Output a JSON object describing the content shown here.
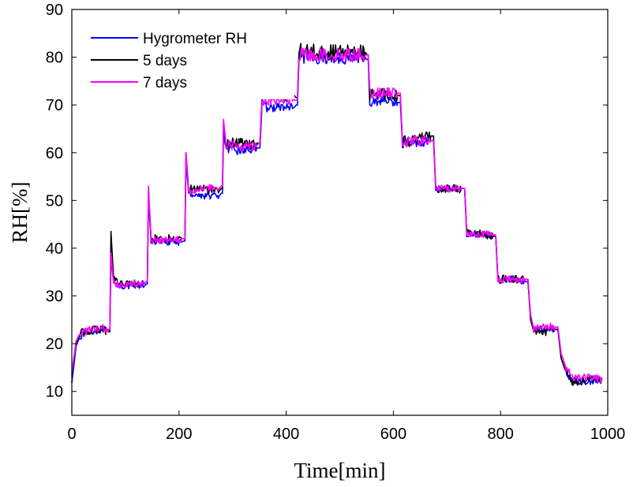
{
  "chart_data": {
    "type": "line",
    "xlabel": "Time[min]",
    "ylabel": "RH[%]",
    "xlim": [
      0,
      1000
    ],
    "ylim": [
      5,
      90
    ],
    "xticks": [
      "0",
      "200",
      "400",
      "600",
      "800",
      "1000"
    ],
    "yticks": [
      "10",
      "20",
      "30",
      "40",
      "50",
      "60",
      "70",
      "80",
      "90"
    ],
    "grid": false,
    "legend_position": "top-left",
    "series": [
      {
        "name": "Hygrometer RH",
        "color": "#0000ff",
        "noise": 0.7,
        "points": [
          [
            0,
            11.8
          ],
          [
            8,
            19.5
          ],
          [
            15,
            21.5
          ],
          [
            30,
            22.5
          ],
          [
            60,
            23.0
          ],
          [
            69,
            22.5
          ],
          [
            71,
            22.5
          ],
          [
            73,
            38.0
          ],
          [
            78,
            32.5
          ],
          [
            100,
            32.0
          ],
          [
            135,
            32.0
          ],
          [
            139,
            32.5
          ],
          [
            141,
            32.5
          ],
          [
            143,
            50.0
          ],
          [
            148,
            41.5
          ],
          [
            175,
            41.3
          ],
          [
            205,
            41.3
          ],
          [
            209,
            41.5
          ],
          [
            211,
            41.5
          ],
          [
            213,
            58.0
          ],
          [
            218,
            51.5
          ],
          [
            240,
            51.0
          ],
          [
            275,
            51.0
          ],
          [
            279,
            51.5
          ],
          [
            281,
            51.5
          ],
          [
            283,
            64.0
          ],
          [
            288,
            60.5
          ],
          [
            315,
            60.5
          ],
          [
            345,
            61.0
          ],
          [
            349,
            61.0
          ],
          [
            351,
            61.0
          ],
          [
            355,
            69.5
          ],
          [
            380,
            69.5
          ],
          [
            415,
            69.5
          ],
          [
            419,
            70.0
          ],
          [
            421,
            70.0
          ],
          [
            424,
            80.0
          ],
          [
            480,
            79.8
          ],
          [
            548,
            79.8
          ],
          [
            551,
            79.5
          ],
          [
            553,
            79.5
          ],
          [
            556,
            70.5
          ],
          [
            580,
            71.0
          ],
          [
            608,
            70.5
          ],
          [
            611,
            70.5
          ],
          [
            613,
            70.5
          ],
          [
            617,
            62.0
          ],
          [
            640,
            62.0
          ],
          [
            670,
            62.5
          ],
          [
            673,
            62.5
          ],
          [
            675,
            62.5
          ],
          [
            679,
            52.5
          ],
          [
            700,
            52.5
          ],
          [
            728,
            52.5
          ],
          [
            731,
            52.5
          ],
          [
            733,
            52.5
          ],
          [
            737,
            43.0
          ],
          [
            760,
            43.0
          ],
          [
            786,
            42.5
          ],
          [
            789,
            42.5
          ],
          [
            791,
            42.5
          ],
          [
            795,
            33.5
          ],
          [
            820,
            33.5
          ],
          [
            846,
            33.0
          ],
          [
            849,
            33.0
          ],
          [
            851,
            33.0
          ],
          [
            856,
            26.0
          ],
          [
            862,
            23.0
          ],
          [
            880,
            23.0
          ],
          [
            902,
            23.0
          ],
          [
            905,
            23.0
          ],
          [
            907,
            23.0
          ],
          [
            913,
            17.0
          ],
          [
            922,
            14.0
          ],
          [
            935,
            12.0
          ],
          [
            960,
            12.0
          ],
          [
            990,
            12.5
          ]
        ]
      },
      {
        "name": "5 days",
        "color": "#000000",
        "noise": 0.9,
        "points": [
          [
            0,
            13.5
          ],
          [
            8,
            20.0
          ],
          [
            15,
            22.0
          ],
          [
            30,
            22.8
          ],
          [
            60,
            23.0
          ],
          [
            69,
            22.5
          ],
          [
            71,
            22.5
          ],
          [
            73,
            43.5
          ],
          [
            78,
            33.5
          ],
          [
            100,
            32.5
          ],
          [
            135,
            32.5
          ],
          [
            139,
            33.0
          ],
          [
            141,
            33.0
          ],
          [
            143,
            52.0
          ],
          [
            148,
            42.0
          ],
          [
            175,
            42.0
          ],
          [
            205,
            42.0
          ],
          [
            209,
            42.0
          ],
          [
            211,
            42.0
          ],
          [
            213,
            60.0
          ],
          [
            218,
            52.5
          ],
          [
            240,
            52.5
          ],
          [
            275,
            52.0
          ],
          [
            279,
            52.5
          ],
          [
            281,
            52.5
          ],
          [
            283,
            66.0
          ],
          [
            288,
            62.0
          ],
          [
            315,
            62.0
          ],
          [
            345,
            62.0
          ],
          [
            349,
            62.0
          ],
          [
            351,
            62.0
          ],
          [
            355,
            72.0
          ],
          [
            380,
            72.0
          ],
          [
            415,
            72.0
          ],
          [
            419,
            71.5
          ],
          [
            421,
            71.5
          ],
          [
            424,
            81.5
          ],
          [
            480,
            81.0
          ],
          [
            548,
            81.0
          ],
          [
            551,
            80.5
          ],
          [
            553,
            80.5
          ],
          [
            556,
            72.0
          ],
          [
            580,
            72.5
          ],
          [
            608,
            72.0
          ],
          [
            611,
            72.0
          ],
          [
            613,
            72.0
          ],
          [
            617,
            62.5
          ],
          [
            640,
            62.5
          ],
          [
            670,
            63.5
          ],
          [
            673,
            63.5
          ],
          [
            675,
            63.5
          ],
          [
            679,
            52.5
          ],
          [
            700,
            52.5
          ],
          [
            728,
            52.5
          ],
          [
            731,
            52.5
          ],
          [
            733,
            52.5
          ],
          [
            737,
            43.0
          ],
          [
            760,
            43.0
          ],
          [
            786,
            42.5
          ],
          [
            789,
            42.5
          ],
          [
            791,
            42.5
          ],
          [
            795,
            33.5
          ],
          [
            820,
            33.5
          ],
          [
            846,
            33.5
          ],
          [
            849,
            33.5
          ],
          [
            851,
            33.5
          ],
          [
            856,
            25.0
          ],
          [
            862,
            22.5
          ],
          [
            880,
            22.5
          ],
          [
            902,
            23.0
          ],
          [
            905,
            23.0
          ],
          [
            907,
            23.0
          ],
          [
            913,
            17.0
          ],
          [
            922,
            14.0
          ],
          [
            935,
            12.0
          ],
          [
            960,
            12.5
          ],
          [
            990,
            12.5
          ]
        ]
      },
      {
        "name": "7 days",
        "color": "#ff00ff",
        "noise": 0.8,
        "points": [
          [
            0,
            14.0
          ],
          [
            8,
            20.5
          ],
          [
            15,
            22.2
          ],
          [
            30,
            22.8
          ],
          [
            60,
            23.2
          ],
          [
            69,
            23.0
          ],
          [
            71,
            23.0
          ],
          [
            73,
            39.0
          ],
          [
            78,
            32.5
          ],
          [
            100,
            32.5
          ],
          [
            135,
            32.5
          ],
          [
            139,
            33.0
          ],
          [
            141,
            33.0
          ],
          [
            143,
            53.0
          ],
          [
            148,
            41.5
          ],
          [
            175,
            41.8
          ],
          [
            205,
            42.0
          ],
          [
            209,
            42.0
          ],
          [
            211,
            42.0
          ],
          [
            213,
            60.0
          ],
          [
            218,
            52.0
          ],
          [
            240,
            52.5
          ],
          [
            275,
            52.5
          ],
          [
            279,
            53.0
          ],
          [
            281,
            53.0
          ],
          [
            283,
            67.0
          ],
          [
            288,
            61.5
          ],
          [
            315,
            61.5
          ],
          [
            345,
            61.5
          ],
          [
            349,
            62.0
          ],
          [
            351,
            62.0
          ],
          [
            355,
            71.0
          ],
          [
            380,
            71.0
          ],
          [
            415,
            71.0
          ],
          [
            419,
            71.0
          ],
          [
            421,
            71.0
          ],
          [
            424,
            80.5
          ],
          [
            480,
            80.5
          ],
          [
            548,
            80.5
          ],
          [
            551,
            80.5
          ],
          [
            553,
            80.5
          ],
          [
            556,
            72.5
          ],
          [
            580,
            72.5
          ],
          [
            608,
            72.5
          ],
          [
            611,
            72.5
          ],
          [
            613,
            72.5
          ],
          [
            617,
            62.0
          ],
          [
            640,
            62.5
          ],
          [
            670,
            62.5
          ],
          [
            673,
            62.5
          ],
          [
            675,
            62.5
          ],
          [
            679,
            52.5
          ],
          [
            700,
            52.5
          ],
          [
            728,
            52.5
          ],
          [
            731,
            52.5
          ],
          [
            733,
            52.5
          ],
          [
            737,
            43.0
          ],
          [
            760,
            43.0
          ],
          [
            786,
            42.8
          ],
          [
            789,
            42.8
          ],
          [
            791,
            42.8
          ],
          [
            795,
            33.5
          ],
          [
            820,
            33.5
          ],
          [
            846,
            33.5
          ],
          [
            849,
            33.5
          ],
          [
            851,
            33.5
          ],
          [
            856,
            26.0
          ],
          [
            862,
            23.0
          ],
          [
            880,
            23.5
          ],
          [
            902,
            23.5
          ],
          [
            905,
            23.5
          ],
          [
            907,
            23.5
          ],
          [
            913,
            18.0
          ],
          [
            922,
            15.0
          ],
          [
            935,
            13.0
          ],
          [
            960,
            13.0
          ],
          [
            990,
            12.5
          ]
        ]
      }
    ]
  }
}
